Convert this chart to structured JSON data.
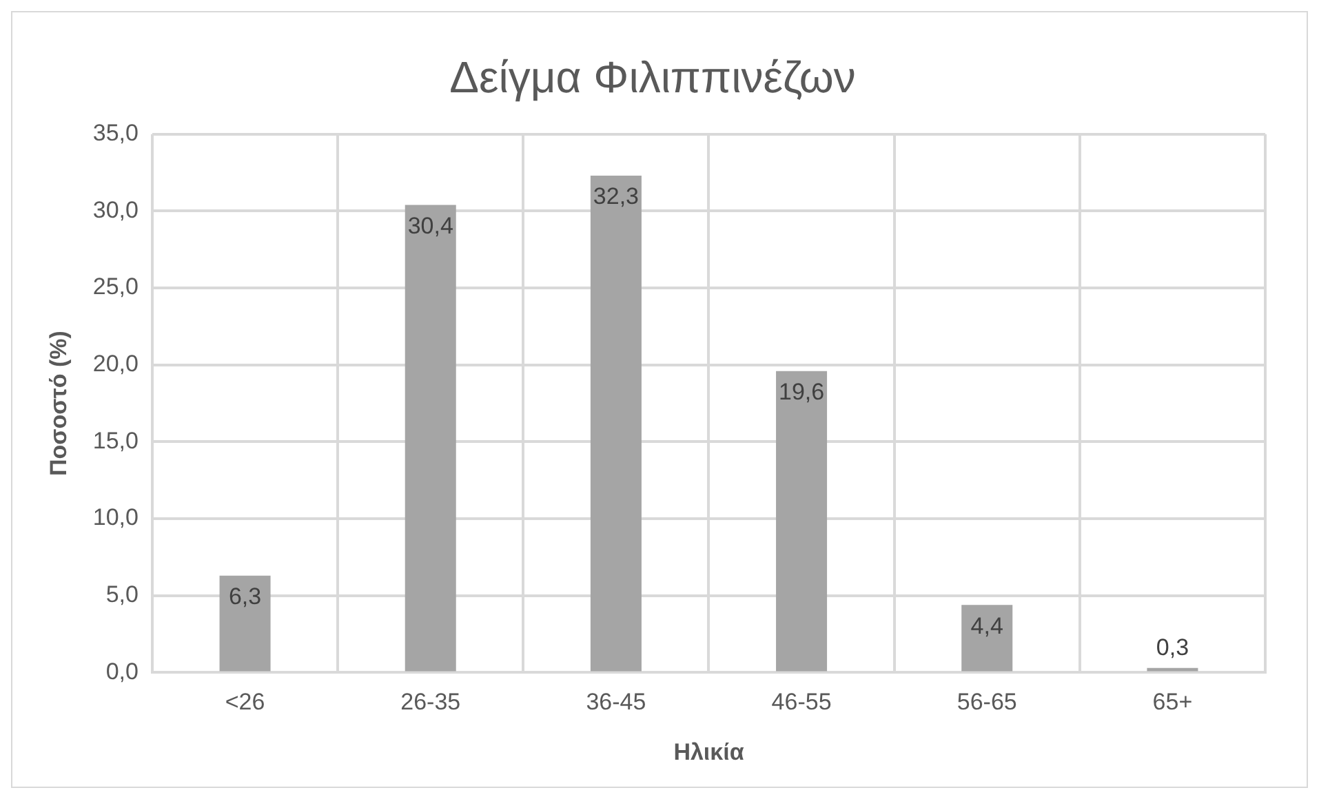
{
  "chart_data": {
    "type": "bar",
    "title": "Δείγμα Φιλιππινέζων",
    "xlabel": "Ηλικία",
    "ylabel": "Ποσοστό (%)",
    "categories": [
      "<26",
      "26-35",
      "36-45",
      "46-55",
      "56-65",
      "65+"
    ],
    "values": [
      6.3,
      30.4,
      32.3,
      19.6,
      4.4,
      0.3
    ],
    "value_labels": [
      "6,3",
      "30,4",
      "32,3",
      "19,6",
      "4,4",
      "0,3"
    ],
    "color": "#a5a5a5",
    "ylim": [
      0,
      35
    ],
    "yticks": [
      {
        "value": 0,
        "label": "0,0"
      },
      {
        "value": 5,
        "label": "5,0"
      },
      {
        "value": 10,
        "label": "10,0"
      },
      {
        "value": 15,
        "label": "15,0"
      },
      {
        "value": 20,
        "label": "20,0"
      },
      {
        "value": 25,
        "label": "25,0"
      },
      {
        "value": 30,
        "label": "30,0"
      },
      {
        "value": 35,
        "label": "35,0"
      }
    ],
    "grid": true,
    "legend": false
  }
}
